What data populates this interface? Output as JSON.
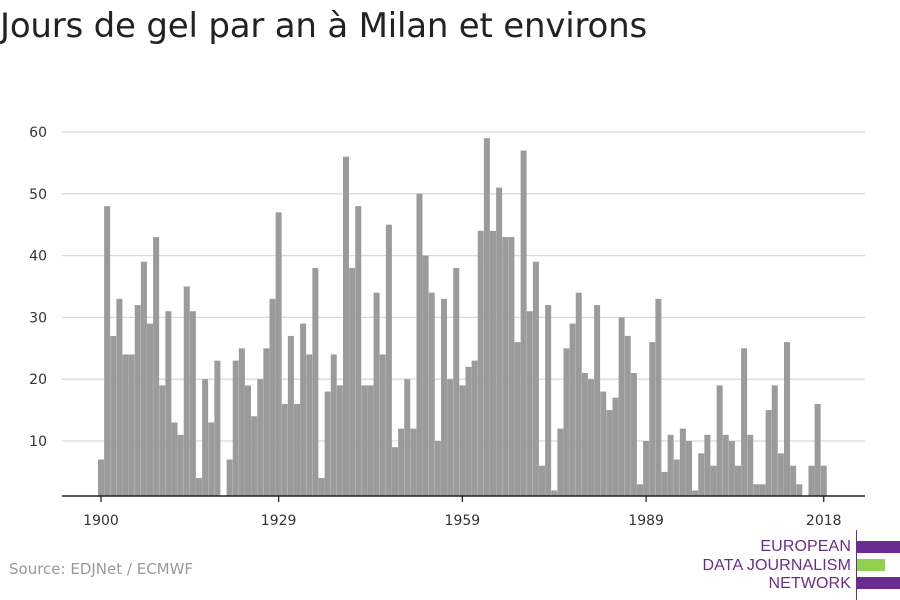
{
  "title": "Jours de gel par an à Milan et environs",
  "source": "Source: EDJNet / ECMWF",
  "logo": {
    "lines": [
      "EUROPEAN",
      "DATA JOURNALISM",
      "NETWORK"
    ],
    "colors": [
      "#6a2c91",
      "#8fd14f",
      "#6a2c91"
    ]
  },
  "chart_data": {
    "type": "bar",
    "title": "Jours de gel par an à Milan et environs",
    "xlabel": "",
    "ylabel": "",
    "x": [
      1900,
      1901,
      1902,
      1903,
      1904,
      1905,
      1906,
      1907,
      1908,
      1909,
      1910,
      1911,
      1912,
      1913,
      1914,
      1915,
      1916,
      1917,
      1918,
      1919,
      1920,
      1921,
      1922,
      1923,
      1924,
      1925,
      1926,
      1927,
      1928,
      1929,
      1930,
      1931,
      1932,
      1933,
      1934,
      1935,
      1936,
      1937,
      1938,
      1939,
      1940,
      1941,
      1942,
      1943,
      1944,
      1945,
      1946,
      1947,
      1948,
      1949,
      1950,
      1951,
      1952,
      1953,
      1954,
      1955,
      1956,
      1957,
      1958,
      1959,
      1960,
      1961,
      1962,
      1963,
      1964,
      1965,
      1966,
      1967,
      1968,
      1969,
      1970,
      1971,
      1972,
      1973,
      1974,
      1975,
      1976,
      1977,
      1978,
      1979,
      1980,
      1981,
      1982,
      1983,
      1984,
      1985,
      1986,
      1987,
      1988,
      1989,
      1990,
      1991,
      1992,
      1993,
      1994,
      1995,
      1996,
      1997,
      1998,
      1999,
      2000,
      2001,
      2002,
      2003,
      2004,
      2005,
      2006,
      2007,
      2008,
      2009,
      2010,
      2011,
      2012,
      2013,
      2014,
      2015,
      2016,
      2017,
      2018,
      2019
    ],
    "values": [
      7,
      48,
      27,
      33,
      24,
      24,
      32,
      39,
      29,
      43,
      19,
      31,
      13,
      11,
      35,
      31,
      4,
      20,
      13,
      23,
      0,
      7,
      23,
      25,
      19,
      14,
      20,
      25,
      33,
      47,
      16,
      27,
      16,
      29,
      24,
      38,
      4,
      18,
      24,
      19,
      56,
      38,
      48,
      19,
      19,
      34,
      24,
      45,
      9,
      12,
      20,
      12,
      50,
      40,
      34,
      10,
      33,
      20,
      38,
      19,
      22,
      23,
      44,
      59,
      44,
      51,
      43,
      43,
      26,
      57,
      31,
      39,
      6,
      32,
      2,
      12,
      25,
      29,
      34,
      21,
      20,
      32,
      18,
      15,
      17,
      30,
      27,
      21,
      3,
      10,
      26,
      33,
      5,
      11,
      7,
      12,
      10,
      2,
      8,
      11,
      6,
      19,
      11,
      10,
      6,
      25,
      11,
      3,
      3,
      15,
      19,
      8,
      26,
      6,
      3,
      0,
      6,
      16,
      6,
      0
    ],
    "x_ticks": [
      "1900",
      "1929",
      "1959",
      "1989",
      "2018"
    ],
    "y_ticks": [
      "10",
      "20",
      "30",
      "40",
      "50",
      "60"
    ],
    "y_axis_min": 1,
    "ylim": [
      1,
      62
    ],
    "xlim": [
      1900,
      2019
    ],
    "grid": true,
    "bar_color": "#9b9b9b",
    "grid_color": "#d9d9d9",
    "axis_color": "#222222"
  }
}
